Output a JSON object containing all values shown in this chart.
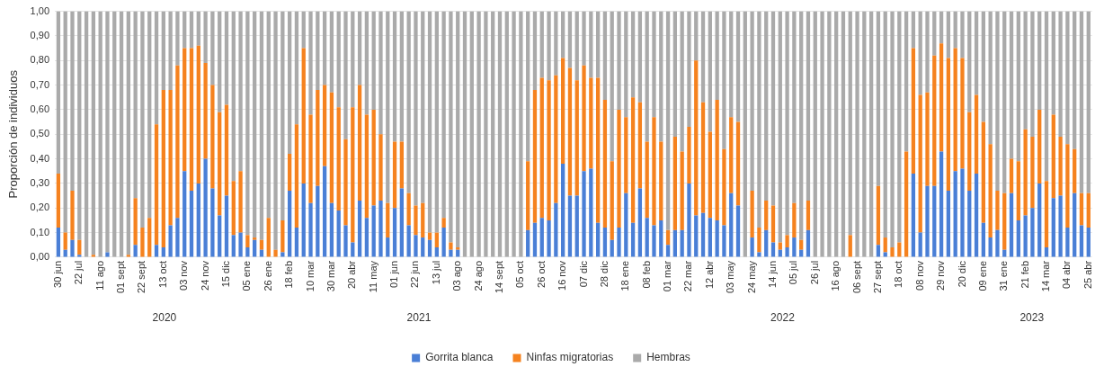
{
  "chart_data": {
    "type": "bar",
    "stacked": true,
    "ylabel": "Proporción de individuos",
    "legend": "bottom",
    "grid": "y",
    "categories": [
      "30 jun",
      null,
      null,
      "22 jul",
      null,
      null,
      "11 ago",
      null,
      null,
      "01 sept",
      null,
      null,
      "22 sept",
      null,
      null,
      "13 oct",
      null,
      null,
      "03 nov",
      null,
      null,
      "24 nov",
      null,
      null,
      "15 dic",
      null,
      null,
      "05 ene",
      null,
      null,
      "26 ene",
      null,
      null,
      "18 feb",
      null,
      null,
      "10 mar",
      null,
      null,
      "30 mar",
      null,
      null,
      "20 abr",
      null,
      null,
      "11 may",
      null,
      null,
      "01 jun",
      null,
      null,
      "22 jun",
      null,
      null,
      "13 jul",
      null,
      null,
      "03 ago",
      null,
      null,
      "24 ago",
      null,
      null,
      "14 sept",
      null,
      null,
      "05 oct",
      null,
      null,
      "26 oct",
      null,
      null,
      "16 nov",
      null,
      null,
      "07 dic",
      null,
      null,
      "28 dic",
      null,
      null,
      "18 ene",
      null,
      null,
      "08 feb",
      null,
      null,
      "01 mar",
      null,
      null,
      "22 mar",
      null,
      null,
      "12 abr",
      null,
      null,
      "03 may",
      null,
      null,
      "24 may",
      null,
      null,
      "14 jun",
      null,
      null,
      "05 jul",
      null,
      null,
      "26 jul",
      null,
      null,
      "16 ago",
      null,
      null,
      "06 sept",
      null,
      null,
      "27 sept",
      null,
      null,
      "18 oct",
      null,
      null,
      "08 nov",
      null,
      null,
      "29 nov",
      null,
      null,
      "20 dic",
      null,
      null,
      "09 ene",
      null,
      null,
      "31 ene",
      null,
      null,
      "21 feb",
      null,
      null,
      "14 mar",
      null,
      null,
      "04 abr",
      null,
      null,
      "25 abr"
    ],
    "ylim": [
      0,
      1
    ],
    "yticks": [
      {
        "value": 0,
        "label": "0,00"
      },
      {
        "value": 0.1,
        "label": "0,10"
      },
      {
        "value": 0.2,
        "label": "0,20"
      },
      {
        "value": 0.3,
        "label": "0,30"
      },
      {
        "value": 0.4,
        "label": "0,40"
      },
      {
        "value": 0.5,
        "label": "0,50"
      },
      {
        "value": 0.6,
        "label": "0,60"
      },
      {
        "value": 0.7,
        "label": "0,70"
      },
      {
        "value": 0.8,
        "label": "0,80"
      },
      {
        "value": 0.9,
        "label": "0,90"
      },
      {
        "value": 1,
        "label": "1,00"
      }
    ],
    "annotations": [
      "2020",
      "2021",
      "2022",
      "2023"
    ],
    "series": [
      {
        "name": "Gorrita blanca",
        "color": "#4a7fd6",
        "values": [
          0.12,
          0.03,
          0.07,
          0.01,
          0,
          0,
          0,
          0.02,
          0,
          0,
          0,
          0.05,
          0,
          0,
          0.05,
          0.04,
          0.13,
          0.16,
          0.35,
          0.27,
          0.3,
          0.4,
          0.28,
          0.17,
          0.25,
          0.09,
          0.1,
          0.04,
          0.07,
          0.03,
          0,
          0,
          0.02,
          0.27,
          0.12,
          0.3,
          0.22,
          0.29,
          0.37,
          0.22,
          0.19,
          0.13,
          0.06,
          0.23,
          0.16,
          0.21,
          0.23,
          0.08,
          0.2,
          0.28,
          0.13,
          0.09,
          0.08,
          0.07,
          0.04,
          0.12,
          0.03,
          0.03,
          0,
          0,
          0,
          0,
          0,
          0,
          0,
          0,
          0,
          0.11,
          0.14,
          0.16,
          0.15,
          0.22,
          0.38,
          0.25,
          0.25,
          0.35,
          0.36,
          0.14,
          0.12,
          0.07,
          0.12,
          0.26,
          0.14,
          0.28,
          0.16,
          0.13,
          0.15,
          0.05,
          0.11,
          0.11,
          0.3,
          0.17,
          0.18,
          0.16,
          0.15,
          0.13,
          0.26,
          0.21,
          0,
          0.08,
          0.02,
          0.11,
          0.06,
          0.03,
          0.04,
          0.08,
          0.03,
          0.11,
          0,
          0,
          0,
          0,
          0,
          0,
          0,
          0,
          0,
          0.05,
          0.02,
          0,
          0,
          0,
          0.34,
          0.1,
          0.29,
          0.29,
          0.43,
          0.27,
          0.35,
          0.36,
          0.27,
          0.34,
          0.14,
          0.08,
          0.11,
          0.03,
          0.26,
          0.15,
          0.17,
          0.2,
          0.3,
          0.04,
          0.24,
          0.25,
          0.12,
          0.26,
          0.13,
          0.12
        ]
      },
      {
        "name": "Ninfas migratorias",
        "color": "#f5821f",
        "values": [
          0.22,
          0.07,
          0.2,
          0.06,
          0,
          0.01,
          0,
          0,
          0,
          0,
          0.01,
          0.19,
          0.12,
          0.16,
          0.49,
          0.64,
          0.55,
          0.62,
          0.5,
          0.58,
          0.56,
          0.39,
          0.42,
          0.42,
          0.37,
          0.22,
          0.25,
          0.05,
          0.01,
          0.04,
          0.16,
          0.03,
          0.13,
          0.15,
          0.42,
          0.55,
          0.36,
          0.39,
          0.33,
          0.45,
          0.42,
          0.35,
          0.55,
          0.47,
          0.42,
          0.39,
          0.27,
          0.14,
          0.27,
          0.19,
          0.13,
          0.12,
          0.14,
          0.03,
          0.06,
          0.04,
          0.03,
          0.01,
          0,
          0,
          0,
          0,
          0,
          0,
          0,
          0,
          0,
          0.28,
          0.54,
          0.57,
          0.57,
          0.52,
          0.43,
          0.52,
          0.47,
          0.43,
          0.37,
          0.59,
          0.52,
          0.32,
          0.48,
          0.31,
          0.51,
          0.35,
          0.31,
          0.44,
          0.32,
          0.06,
          0.38,
          0.32,
          0.23,
          0.63,
          0.45,
          0.35,
          0.49,
          0.31,
          0.31,
          0.34,
          0,
          0.19,
          0.1,
          0.12,
          0.15,
          0.03,
          0.05,
          0.14,
          0.04,
          0.12,
          0,
          0,
          0,
          0,
          0,
          0.09,
          0,
          0,
          0,
          0.24,
          0.06,
          0.04,
          0.06,
          0.43,
          0.51,
          0.56,
          0.38,
          0.53,
          0.44,
          0.54,
          0.5,
          0.45,
          0.32,
          0.32,
          0.41,
          0.38,
          0.16,
          0.23,
          0.14,
          0.24,
          0.35,
          0.29,
          0.3,
          0.27,
          0.34,
          0.24,
          0.34,
          0.18,
          0.13,
          0.14
        ]
      },
      {
        "name": "Hembras",
        "color": "#aaaaaa",
        "values": [
          0.66,
          0.9,
          0.73,
          0.93,
          1,
          0.99,
          1,
          0.98,
          1,
          1,
          0.99,
          0.76,
          0.88,
          0.84,
          0.46,
          0.32,
          0.32,
          0.22,
          0.15,
          0.15,
          0.14,
          0.21,
          0.3,
          0.41,
          0.38,
          0.69,
          0.65,
          0.91,
          0.92,
          0.93,
          0.84,
          0.97,
          0.85,
          0.58,
          0.46,
          0.15,
          0.42,
          0.32,
          0.3,
          0.33,
          0.39,
          0.52,
          0.39,
          0.3,
          0.42,
          0.4,
          0.5,
          0.78,
          0.53,
          0.53,
          0.74,
          0.79,
          0.78,
          0.9,
          0.9,
          0.84,
          0.94,
          0.96,
          1,
          1,
          1,
          1,
          1,
          1,
          1,
          1,
          1,
          0.61,
          0.32,
          0.27,
          0.28,
          0.26,
          0.19,
          0.23,
          0.28,
          0.22,
          0.27,
          0.27,
          0.36,
          0.61,
          0.4,
          0.43,
          0.35,
          0.37,
          0.53,
          0.43,
          0.53,
          0.89,
          0.51,
          0.57,
          0.47,
          0.2,
          0.37,
          0.49,
          0.36,
          0.56,
          0.43,
          0.45,
          1,
          0.73,
          0.88,
          0.77,
          0.79,
          0.94,
          0.91,
          0.78,
          0.93,
          0.77,
          1,
          1,
          1,
          1,
          1,
          0.91,
          1,
          1,
          1,
          0.71,
          0.92,
          0.96,
          0.94,
          0.57,
          0.15,
          0.34,
          0.33,
          0.18,
          0.13,
          0.19,
          0.15,
          0.19,
          0.41,
          0.34,
          0.45,
          0.54,
          0.73,
          0.74,
          0.6,
          0.61,
          0.48,
          0.51,
          0.4,
          0.69,
          0.42,
          0.51,
          0.54,
          0.56,
          0.74,
          0.74
        ]
      }
    ]
  }
}
